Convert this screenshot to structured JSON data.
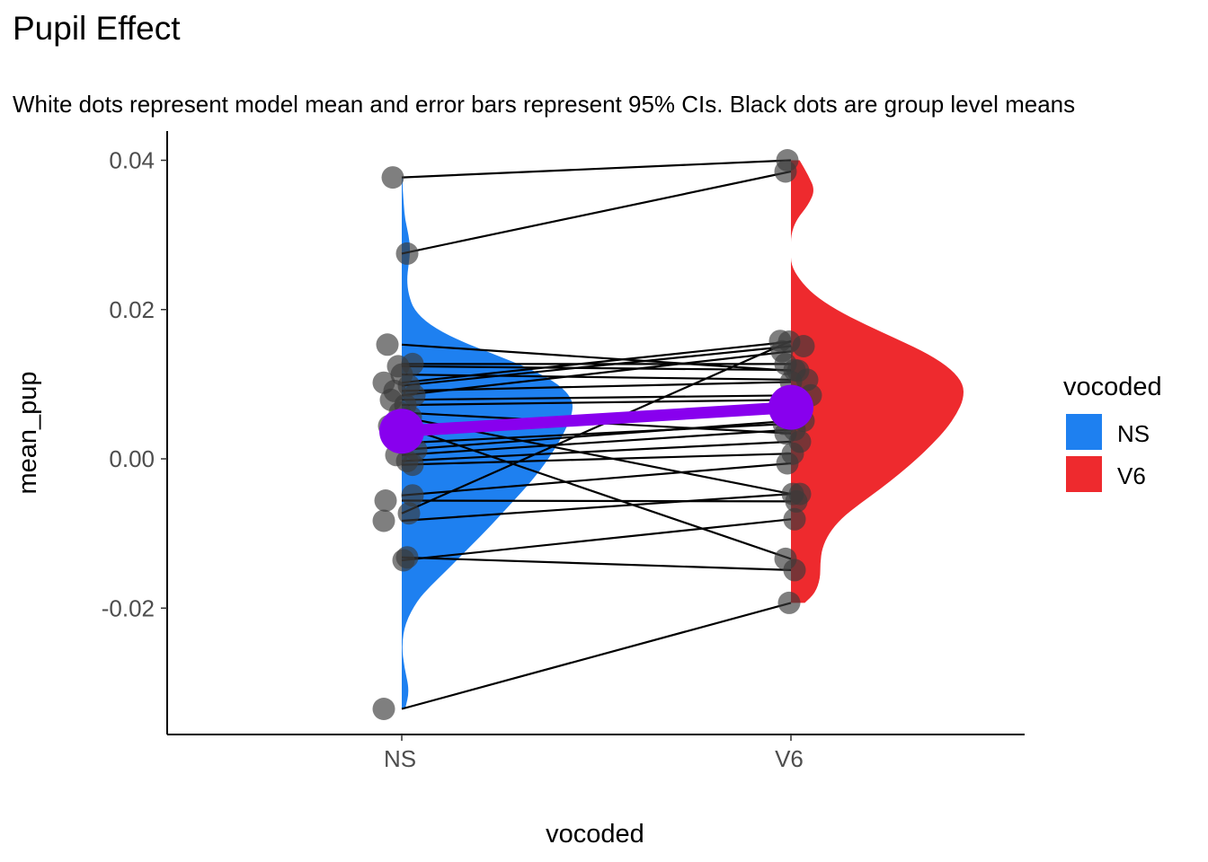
{
  "chart_data": {
    "type": "raincloud",
    "title": "Pupil Effect",
    "subtitle": "White dots represent model mean and error bars represent 95% CIs. Black dots are group level means",
    "xlabel": "vocoded",
    "ylabel": "mean_pup",
    "categories": [
      "NS",
      "V6"
    ],
    "ylim": [
      -0.036,
      0.04
    ],
    "yticks": [
      -0.02,
      0.0,
      0.02,
      0.04
    ],
    "ytick_labels": [
      "-0.02",
      "0.00",
      "0.02",
      "0.04"
    ],
    "grid": false,
    "legend": {
      "title": "vocoded",
      "position": "right",
      "entries": [
        {
          "label": "NS",
          "color": "#1E80F0"
        },
        {
          "label": "V6",
          "color": "#EE2A2E"
        }
      ]
    },
    "colors": {
      "NS": "#1E80F0",
      "V6": "#EE2A2E",
      "model": "#8800EE",
      "points": "#5a5a5a"
    },
    "density": {
      "NS": {
        "y": [
          -0.0335,
          -0.031,
          -0.028,
          -0.025,
          -0.022,
          -0.019,
          -0.017,
          -0.015,
          -0.012,
          -0.009,
          -0.006,
          -0.003,
          0.0,
          0.003,
          0.006,
          0.008,
          0.01,
          0.012,
          0.014,
          0.016,
          0.018,
          0.02,
          0.022,
          0.024,
          0.026,
          0.028,
          0.03,
          0.032,
          0.034,
          0.036,
          0.0377
        ],
        "d": [
          0.02,
          0.045,
          0.015,
          0.0,
          0.02,
          0.09,
          0.17,
          0.26,
          0.39,
          0.52,
          0.64,
          0.76,
          0.86,
          0.94,
          1.0,
          1.0,
          0.92,
          0.76,
          0.54,
          0.32,
          0.16,
          0.07,
          0.04,
          0.03,
          0.04,
          0.05,
          0.04,
          0.02,
          0.012,
          0.006,
          0.004
        ]
      },
      "V6": {
        "y": [
          -0.0193,
          -0.018,
          -0.016,
          -0.014,
          -0.012,
          -0.01,
          -0.008,
          -0.006,
          -0.004,
          -0.002,
          0.0,
          0.002,
          0.004,
          0.006,
          0.008,
          0.01,
          0.012,
          0.014,
          0.016,
          0.018,
          0.02,
          0.022,
          0.024,
          0.026,
          0.028,
          0.03,
          0.032,
          0.034,
          0.036,
          0.038,
          0.04
        ],
        "d": [
          0.08,
          0.14,
          0.17,
          0.17,
          0.18,
          0.22,
          0.29,
          0.4,
          0.52,
          0.63,
          0.73,
          0.82,
          0.9,
          0.96,
          1.0,
          1.0,
          0.93,
          0.8,
          0.62,
          0.43,
          0.26,
          0.13,
          0.05,
          0.0,
          0.0,
          0.0,
          0.03,
          0.1,
          0.14,
          0.1,
          0.05
        ]
      }
    },
    "model": {
      "NS": {
        "mean": 0.0037,
        "lower": 0.0022,
        "upper": 0.0052
      },
      "V6": {
        "mean": 0.0069,
        "lower": 0.0054,
        "upper": 0.0084
      }
    },
    "subjects": [
      {
        "NS": 0.0377,
        "V6": 0.04
      },
      {
        "NS": 0.0275,
        "V6": 0.0385
      },
      {
        "NS": 0.0153,
        "V6": 0.0118
      },
      {
        "NS": 0.0127,
        "V6": 0.0127
      },
      {
        "NS": 0.0124,
        "V6": 0.0119
      },
      {
        "NS": 0.0113,
        "V6": 0.0106
      },
      {
        "NS": 0.0102,
        "V6": 0.0157
      },
      {
        "NS": 0.0098,
        "V6": 0.0151
      },
      {
        "NS": 0.0091,
        "V6": 0.0103
      },
      {
        "NS": 0.0085,
        "V6": 0.0144
      },
      {
        "NS": 0.0079,
        "V6": 0.0085
      },
      {
        "NS": 0.0072,
        "V6": 0.0079
      },
      {
        "NS": 0.0062,
        "V6": 0.0034
      },
      {
        "NS": 0.0056,
        "V6": -0.0047
      },
      {
        "NS": 0.0044,
        "V6": -0.0134
      },
      {
        "NS": 0.0021,
        "V6": 0.0047
      },
      {
        "NS": 0.0012,
        "V6": 0.0051
      },
      {
        "NS": 0.0005,
        "V6": 0.0039
      },
      {
        "NS": -0.0003,
        "V6": 0.0023
      },
      {
        "NS": -0.0008,
        "V6": 0.0007
      },
      {
        "NS": -0.0049,
        "V6": -0.0006
      },
      {
        "NS": -0.0056,
        "V6": -0.0057
      },
      {
        "NS": -0.0073,
        "V6": 0.0158
      },
      {
        "NS": -0.0083,
        "V6": -0.0047
      },
      {
        "NS": -0.0132,
        "V6": -0.0149
      },
      {
        "NS": -0.0136,
        "V6": -0.0081
      },
      {
        "NS": -0.0335,
        "V6": -0.0193
      }
    ]
  }
}
